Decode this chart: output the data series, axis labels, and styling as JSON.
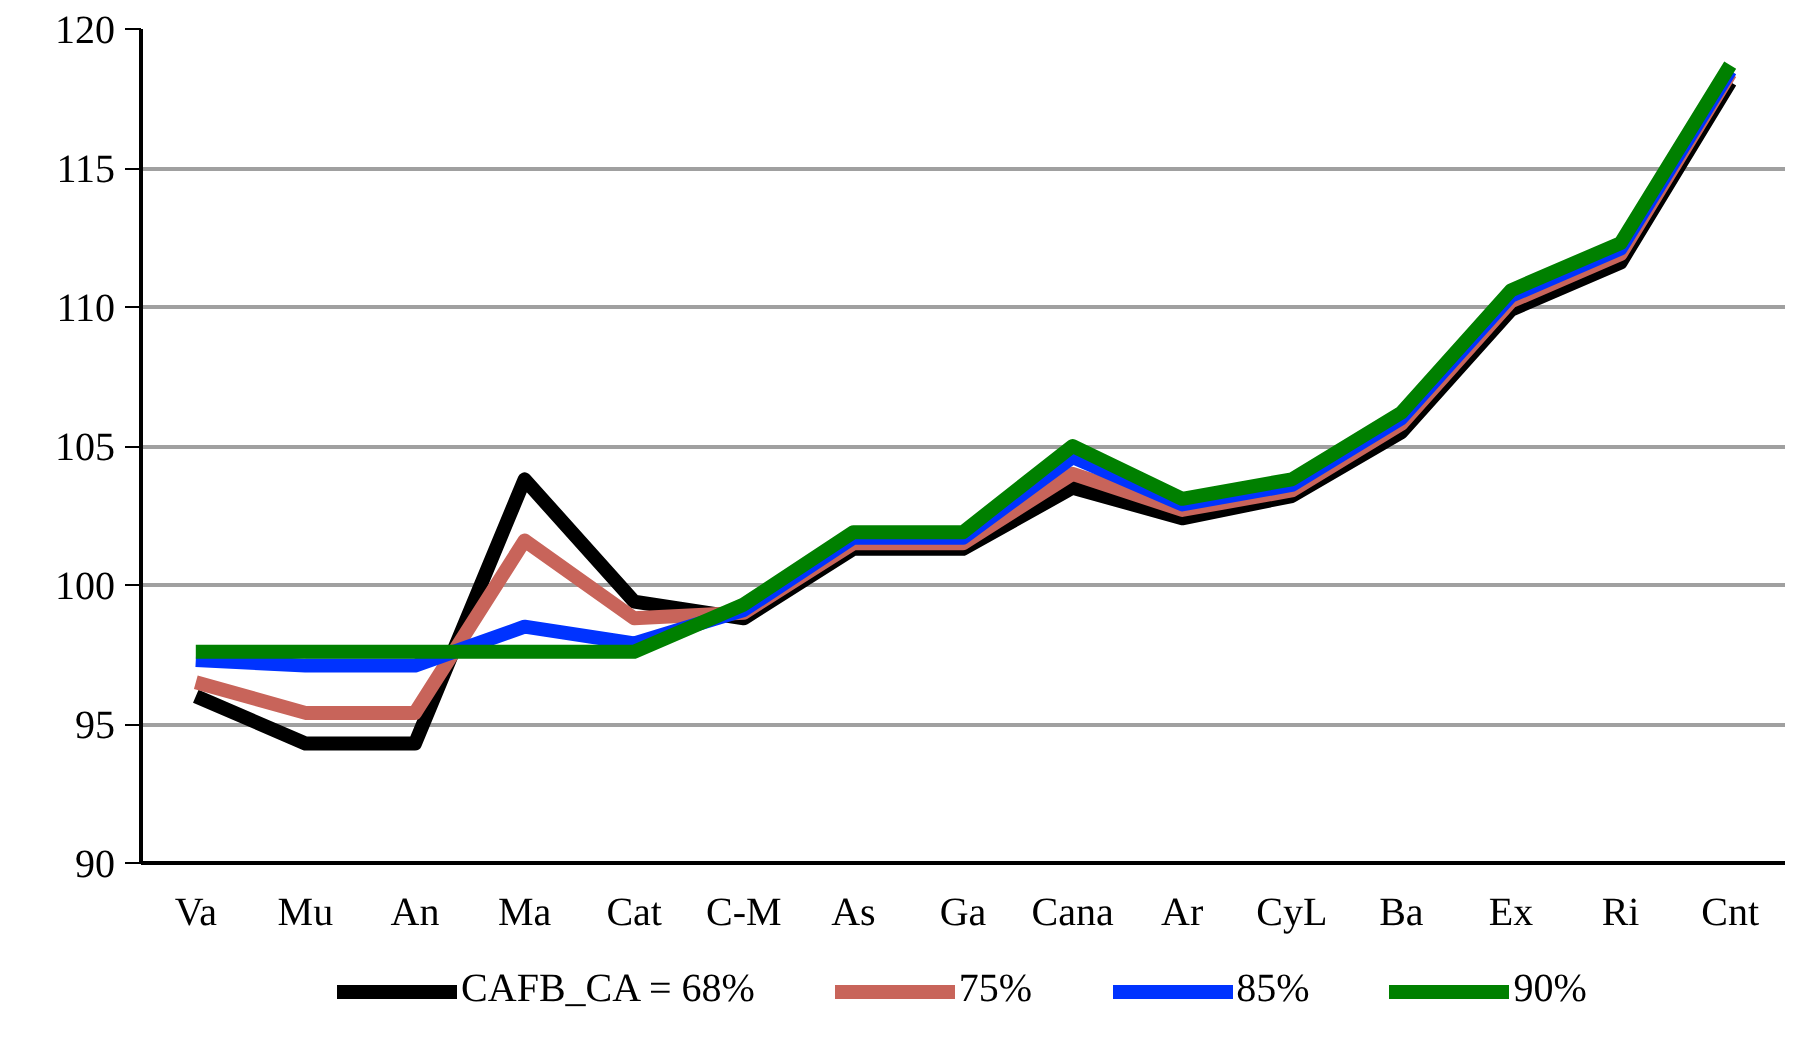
{
  "chart_data": {
    "type": "line",
    "categories": [
      "Va",
      "Mu",
      "An",
      "Ma",
      "Cat",
      "C-M",
      "As",
      "Ga",
      "Cana",
      "Ar",
      "CyL",
      "Ba",
      "Ex",
      "Ri",
      "Cnt"
    ],
    "ylim": [
      90,
      120
    ],
    "yticks": [
      90,
      95,
      100,
      105,
      110,
      115,
      120
    ],
    "grid": "y",
    "legend": "bottom",
    "marker": "none",
    "line_style": "solid",
    "series": [
      {
        "name": "CAFB_CA = 68%",
        "color": "#000000",
        "values": [
          96.0,
          94.3,
          94.3,
          103.8,
          99.4,
          98.8,
          101.3,
          101.3,
          103.5,
          102.4,
          103.2,
          105.5,
          109.9,
          111.6,
          118.1
        ]
      },
      {
        "name": "75%",
        "color": "#c8645a",
        "values": [
          96.5,
          95.4,
          95.4,
          101.6,
          98.8,
          99.0,
          101.5,
          101.5,
          104.0,
          102.7,
          103.4,
          105.8,
          110.2,
          111.9,
          118.4
        ]
      },
      {
        "name": "85%",
        "color": "#0033ff",
        "values": [
          97.3,
          97.1,
          97.1,
          98.5,
          97.9,
          99.1,
          101.7,
          101.7,
          104.6,
          102.9,
          103.6,
          106.0,
          110.4,
          112.1,
          118.5
        ]
      },
      {
        "name": "90%",
        "color": "#008000",
        "values": [
          97.6,
          97.6,
          97.6,
          97.6,
          97.6,
          99.3,
          101.9,
          101.9,
          105.0,
          103.1,
          103.8,
          106.2,
          110.6,
          112.3,
          118.7
        ]
      }
    ]
  }
}
